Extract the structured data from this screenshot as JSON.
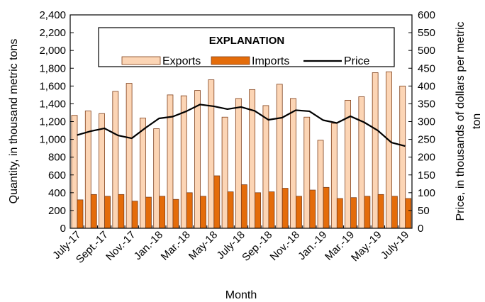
{
  "chart_data": {
    "type": "bar",
    "xlabel": "Month",
    "ylabel": "Quantity, in thousand metric tons",
    "y2label_line1": "Price, in thousands of dollars per metric",
    "y2label_line2": "ton",
    "ylim": [
      0,
      2400
    ],
    "y2lim": [
      0,
      600
    ],
    "yticks": [
      "0",
      "200",
      "400",
      "600",
      "800",
      "1,000",
      "1,200",
      "1,400",
      "1,600",
      "1,800",
      "2,000",
      "2,200",
      "2,400"
    ],
    "y2ticks": [
      "0",
      "50",
      "100",
      "150",
      "200",
      "250",
      "300",
      "350",
      "400",
      "450",
      "500",
      "550",
      "600"
    ],
    "categories": [
      "July-17",
      "Aug.-17",
      "Sept.-17",
      "Oct.-17",
      "Nov.-17",
      "Dec.-17",
      "Jan.-18",
      "Feb.-18",
      "Mar.-18",
      "Apr.-18",
      "May-18",
      "June-18",
      "July-18",
      "Aug.-18",
      "Sep.-18",
      "Oct.-18",
      "Nov.-18",
      "Dec.-18",
      "Jan.-19",
      "Feb.-19",
      "Mar.-19",
      "Apr.-19",
      "May.-19",
      "June-19",
      "July-19"
    ],
    "visible_tick_labels": [
      "July-17",
      "Sept.-17",
      "Nov.-17",
      "Jan.-18",
      "Mar.-18",
      "May-18",
      "July-18",
      "Sep.-18",
      "Nov.-18",
      "Jan.-19",
      "Mar.-19",
      "May.-19",
      "July-19"
    ],
    "legend_title": "EXPLANATION",
    "legend_placement": "top-center",
    "grid": false,
    "series": [
      {
        "name": "Exports",
        "kind": "bar",
        "color": "#fcd5b5",
        "edge": "#7f3f1a",
        "values": [
          1270,
          1320,
          1290,
          1540,
          1630,
          1240,
          1120,
          1500,
          1490,
          1550,
          1670,
          1250,
          1460,
          1560,
          1380,
          1620,
          1460,
          1250,
          990,
          1180,
          1440,
          1480,
          1750,
          1760,
          1600
        ]
      },
      {
        "name": "Imports",
        "kind": "bar",
        "color": "#e46c0a",
        "edge": "#7f3f1a",
        "values": [
          320,
          380,
          360,
          380,
          305,
          350,
          360,
          325,
          400,
          360,
          590,
          410,
          490,
          400,
          410,
          450,
          360,
          430,
          460,
          335,
          345,
          360,
          380,
          360,
          335
        ]
      },
      {
        "name": "Price",
        "kind": "line",
        "axis": "right",
        "color": "#000000",
        "values": [
          262,
          273,
          281,
          261,
          253,
          282,
          309,
          314,
          329,
          348,
          343,
          335,
          341,
          330,
          305,
          311,
          332,
          329,
          304,
          296,
          315,
          298,
          275,
          241,
          231
        ]
      }
    ]
  }
}
